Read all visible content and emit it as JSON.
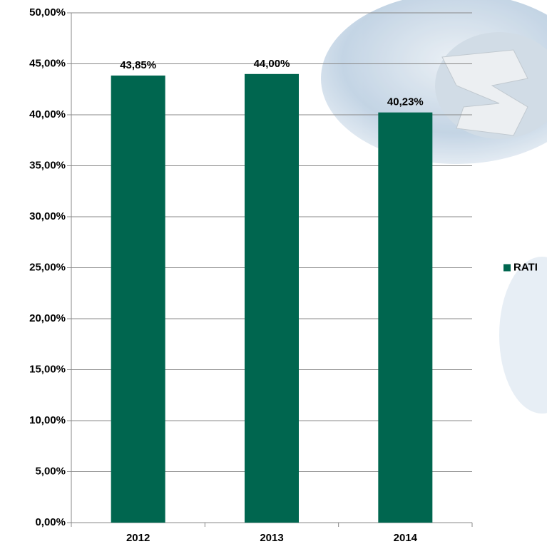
{
  "chart_data": {
    "type": "bar",
    "categories": [
      "2012",
      "2013",
      "2014"
    ],
    "series": [
      {
        "name": "RATI",
        "color": "#00664f",
        "values": [
          43.85,
          44.0,
          40.23
        ],
        "value_labels": [
          "43,85%",
          "44,00%",
          "40,23%"
        ]
      }
    ],
    "ylim": [
      0,
      50
    ],
    "yticks": [
      {
        "value": 0,
        "label": "0,00%"
      },
      {
        "value": 5,
        "label": "5,00%"
      },
      {
        "value": 10,
        "label": "10,00%"
      },
      {
        "value": 15,
        "label": "15,00%"
      },
      {
        "value": 20,
        "label": "20,00%"
      },
      {
        "value": 25,
        "label": "25,00%"
      },
      {
        "value": 30,
        "label": "30,00%"
      },
      {
        "value": 35,
        "label": "35,00%"
      },
      {
        "value": 40,
        "label": "40,00%"
      },
      {
        "value": 45,
        "label": "45,00%"
      },
      {
        "value": 50,
        "label": "50,00%"
      }
    ],
    "grid": true,
    "legend": "right"
  }
}
